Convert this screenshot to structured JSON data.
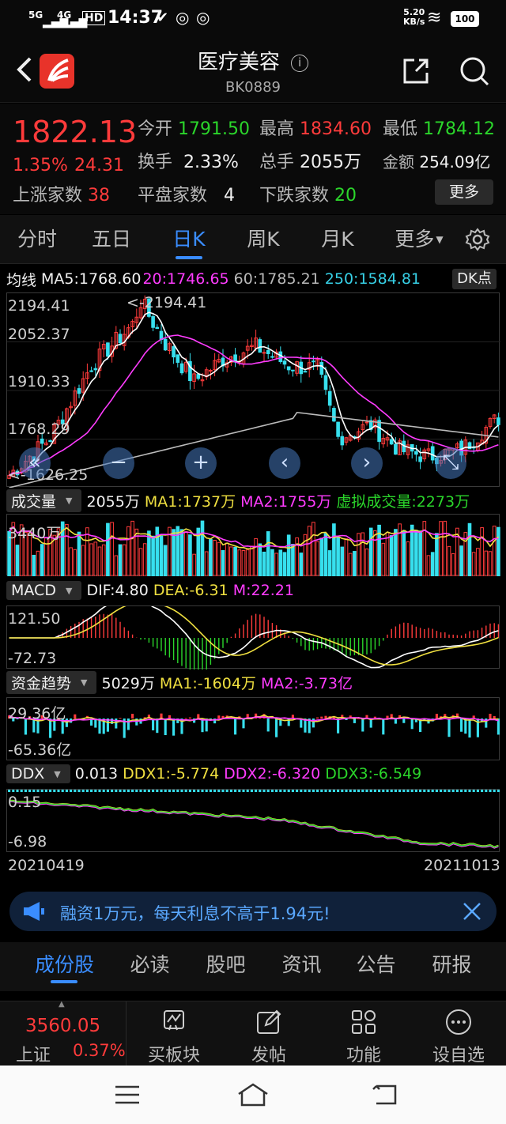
{
  "status_bar": {
    "network1": "5G",
    "network2": "4G",
    "hd": "HD",
    "time": "14:37",
    "speed": "5.20",
    "speed_unit": "KB/s",
    "battery": "100"
  },
  "header": {
    "title": "医疗美容",
    "code": "BK0889",
    "info_icon": "info-icon",
    "share_icon": "share-icon",
    "search_icon": "search-icon",
    "back_icon": "back-icon"
  },
  "quote": {
    "price": "1822.13",
    "change_pct": "1.35%",
    "change": "24.31",
    "open_label": "今开",
    "open": "1791.50",
    "high_label": "最高",
    "high": "1834.60",
    "low_label": "最低",
    "low": "1784.12",
    "turnover_label": "换手",
    "turnover": "2.33%",
    "volume_label": "总手",
    "volume": "2055万",
    "amount_label": "金额",
    "amount": "254.09亿",
    "up_label": "上涨家数",
    "up": "38",
    "flat_label": "平盘家数",
    "flat": "4",
    "down_label": "下跌家数",
    "down": "20",
    "more_button": "更多"
  },
  "k_tabs": [
    "分时",
    "五日",
    "日K",
    "周K",
    "月K",
    "更多"
  ],
  "k_tabs_active": 2,
  "ma_line": {
    "label": "均线",
    "ma5": "MA5:1768.60",
    "ma20": "20:1746.65",
    "ma60": "60:1785.21",
    "ma250": "250:1584.81",
    "dk_button": "DK点"
  },
  "price_axis": {
    "ticks": [
      "2194.41",
      "2052.37",
      "1910.33",
      "1768.29",
      "1626.25"
    ],
    "max_label": "<-2194.41",
    "min_label": "<-1626.25"
  },
  "volume": {
    "selector": "成交量",
    "value": "2055万",
    "ma1": "MA1:1737万",
    "ma2": "MA2:1755万",
    "virtual": "虚拟成交量:2273万",
    "tick": "3440万"
  },
  "macd": {
    "selector": "MACD",
    "dif": "DIF:4.80",
    "dea": "DEA:-6.31",
    "m": "M:22.21",
    "tick_top": "121.50",
    "tick_bottom": "-72.73"
  },
  "fund": {
    "selector": "资金趋势",
    "value": "5029万",
    "ma1": "MA1:-1604万",
    "ma2": "MA2:-3.73亿",
    "tick_top": "29.36亿",
    "tick_bottom": "-65.36亿"
  },
  "ddx": {
    "selector": "DDX",
    "value": "0.013",
    "ddx1": "DDX1:-5.774",
    "ddx2": "DDX2:-6.320",
    "ddx3": "DDX3:-6.549",
    "tick_top": "0.15",
    "tick_bottom": "-6.98"
  },
  "dates": {
    "start": "20210419",
    "end": "20211013"
  },
  "ad": {
    "text": "融资1万元，每天利息不高于1.94元!"
  },
  "bottom_tabs": [
    "成份股",
    "必读",
    "股吧",
    "资讯",
    "公告",
    "研报"
  ],
  "bottom_tabs_active": 0,
  "bottom_nav": {
    "index_price": "3560.05",
    "index_name": "上证",
    "index_pct": "0.37%",
    "items": [
      "买板块",
      "发帖",
      "功能",
      "设自选"
    ]
  },
  "colors": {
    "up": "#ff3b3b",
    "down": "#2bd62b",
    "accent": "#3a8dff",
    "cyan_bar": "#37e0ee",
    "ma20": "#ff3cff",
    "ma60": "#bbbbbb",
    "ma250": "#37d0e6",
    "yellow": "#f0e040"
  }
}
